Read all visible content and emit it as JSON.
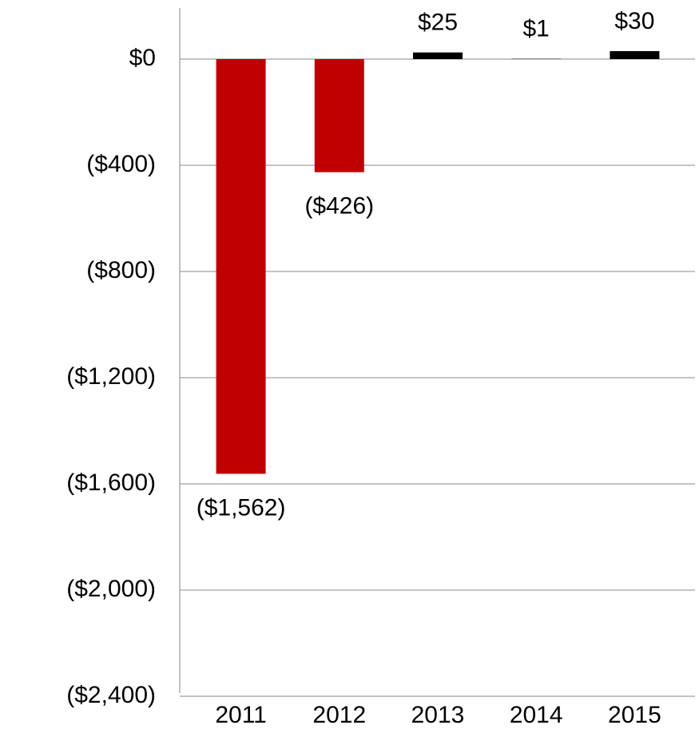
{
  "chart_data": {
    "type": "bar",
    "categories": [
      "2011",
      "2012",
      "2013",
      "2014",
      "2015"
    ],
    "values": [
      -1562,
      -426,
      25,
      1,
      30
    ],
    "value_labels": [
      "($1,562)",
      "($426)",
      "$25",
      "$1",
      "$30"
    ],
    "colors": [
      "#c00000",
      "#c00000",
      "#000000",
      "#000000",
      "#000000"
    ],
    "ylim": [
      -2400,
      200
    ],
    "yticks": [
      {
        "value": 0,
        "label": "$0"
      },
      {
        "value": -400,
        "label": "($400)"
      },
      {
        "value": -800,
        "label": "($800)"
      },
      {
        "value": -1200,
        "label": "($1,200)"
      },
      {
        "value": -1600,
        "label": "($1,600)"
      },
      {
        "value": -2000,
        "label": "($2,000)"
      },
      {
        "value": -2400,
        "label": "($2,400)"
      }
    ],
    "grid": true
  }
}
